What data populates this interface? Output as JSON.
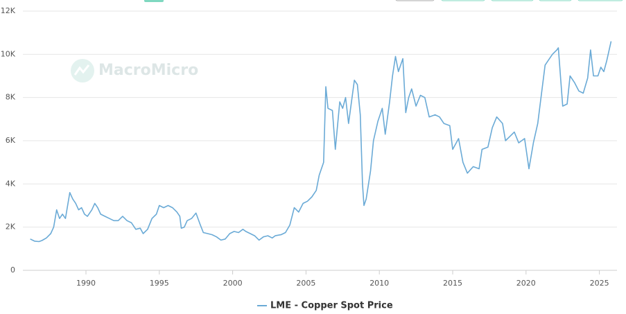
{
  "chart_data": {
    "type": "line",
    "watermark": "MacroMicro",
    "xlim": [
      1985.7,
      2026.2
    ],
    "xticks": [
      1990,
      1995,
      2000,
      2005,
      2010,
      2015,
      2020,
      2025
    ],
    "ylim": [
      0,
      12000
    ],
    "yticks": [
      0,
      {
        "value": 2000,
        "label": "2K"
      },
      {
        "value": 4000,
        "label": "4K"
      },
      {
        "value": 6000,
        "label": "6K"
      },
      {
        "value": 8000,
        "label": "8K"
      },
      {
        "value": 10000,
        "label": "10K"
      },
      {
        "value": 12000,
        "label": "12K"
      }
    ],
    "grid": true,
    "x": [
      1986.2,
      1986.5,
      1986.8,
      1987.0,
      1987.3,
      1987.6,
      1987.8,
      1988.0,
      1988.2,
      1988.4,
      1988.6,
      1988.9,
      1989.1,
      1989.3,
      1989.5,
      1989.7,
      1989.9,
      1990.1,
      1990.4,
      1990.6,
      1990.8,
      1991.0,
      1991.3,
      1991.6,
      1991.9,
      1992.2,
      1992.5,
      1992.8,
      1993.1,
      1993.4,
      1993.7,
      1993.9,
      1994.2,
      1994.5,
      1994.8,
      1995.0,
      1995.3,
      1995.6,
      1995.9,
      1996.2,
      1996.4,
      1996.5,
      1996.7,
      1996.9,
      1997.2,
      1997.5,
      1997.8,
      1998.0,
      1998.3,
      1998.6,
      1998.9,
      1999.2,
      1999.5,
      1999.8,
      2000.1,
      2000.4,
      2000.7,
      2000.9,
      2001.2,
      2001.5,
      2001.8,
      2002.1,
      2002.4,
      2002.7,
      2002.9,
      2003.3,
      2003.6,
      2003.9,
      2004.2,
      2004.5,
      2004.8,
      2005.1,
      2005.4,
      2005.7,
      2005.9,
      2006.2,
      2006.35,
      2006.5,
      2006.8,
      2007.0,
      2007.3,
      2007.5,
      2007.7,
      2007.9,
      2008.1,
      2008.3,
      2008.5,
      2008.7,
      2008.85,
      2008.95,
      2009.1,
      2009.4,
      2009.6,
      2009.9,
      2010.2,
      2010.4,
      2010.7,
      2010.9,
      2011.1,
      2011.3,
      2011.6,
      2011.8,
      2012.0,
      2012.2,
      2012.5,
      2012.8,
      2013.1,
      2013.4,
      2013.8,
      2014.1,
      2014.4,
      2014.8,
      2015.0,
      2015.4,
      2015.7,
      2016.0,
      2016.4,
      2016.8,
      2017.0,
      2017.4,
      2017.7,
      2018.0,
      2018.4,
      2018.6,
      2018.9,
      2019.2,
      2019.5,
      2019.9,
      2020.2,
      2020.5,
      2020.8,
      2021.0,
      2021.3,
      2021.5,
      2021.8,
      2022.1,
      2022.2,
      2022.5,
      2022.8,
      2023.0,
      2023.3,
      2023.6,
      2023.9,
      2024.2,
      2024.4,
      2024.6,
      2024.9,
      2025.1,
      2025.3,
      2025.5,
      2025.8
    ],
    "series": [
      {
        "name": "LME - Copper Spot Price",
        "color": "#6aaad6",
        "values": [
          1450,
          1350,
          1330,
          1380,
          1500,
          1700,
          2000,
          2800,
          2400,
          2600,
          2400,
          3600,
          3300,
          3100,
          2800,
          2900,
          2600,
          2500,
          2800,
          3100,
          2900,
          2600,
          2500,
          2400,
          2300,
          2300,
          2500,
          2300,
          2200,
          1900,
          1950,
          1700,
          1900,
          2400,
          2600,
          3000,
          2900,
          3000,
          2900,
          2700,
          2500,
          1950,
          2000,
          2300,
          2400,
          2650,
          2100,
          1750,
          1700,
          1650,
          1550,
          1400,
          1450,
          1700,
          1800,
          1750,
          1900,
          1800,
          1700,
          1600,
          1400,
          1550,
          1600,
          1500,
          1600,
          1650,
          1750,
          2100,
          2900,
          2700,
          3100,
          3200,
          3400,
          3700,
          4400,
          5000,
          8500,
          7500,
          7400,
          5600,
          7800,
          7500,
          8000,
          6800,
          7800,
          8800,
          8600,
          7200,
          4000,
          3000,
          3300,
          4600,
          6000,
          6900,
          7500,
          6300,
          7800,
          9000,
          9900,
          9200,
          9800,
          7300,
          8000,
          8400,
          7600,
          8100,
          8000,
          7100,
          7200,
          7100,
          6800,
          6700,
          5600,
          6100,
          5000,
          4500,
          4800,
          4700,
          5600,
          5700,
          6600,
          7100,
          6800,
          6000,
          6200,
          6400,
          5900,
          6100,
          4700,
          5900,
          6800,
          7900,
          9500,
          9700,
          10000,
          10200,
          10300,
          7600,
          7700,
          9000,
          8700,
          8300,
          8200,
          8900,
          10200,
          9000,
          9000,
          9400,
          9200,
          9700,
          10600
        ]
      }
    ]
  }
}
